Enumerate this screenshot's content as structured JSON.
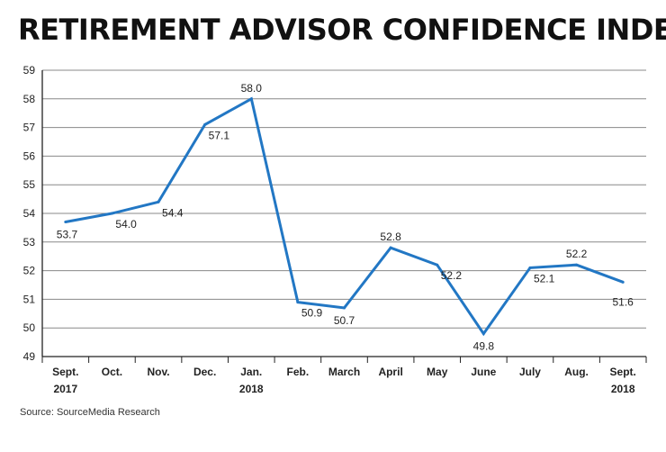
{
  "chart_data": {
    "type": "line",
    "title": "RETIREMENT ADVISOR CONFIDENCE INDEX",
    "source": "Source: SourceMedia Research",
    "categories": [
      [
        "Sept.",
        "2017"
      ],
      [
        "Oct."
      ],
      [
        "Nov."
      ],
      [
        "Dec."
      ],
      [
        "Jan.",
        "2018"
      ],
      [
        "Feb."
      ],
      [
        "March"
      ],
      [
        "April"
      ],
      [
        "May"
      ],
      [
        "June"
      ],
      [
        "July"
      ],
      [
        "Aug."
      ],
      [
        "Sept.",
        "2018"
      ]
    ],
    "series": [
      {
        "name": "Retirement Advisor Confidence Index",
        "values": [
          53.7,
          54.0,
          54.4,
          57.1,
          58.0,
          50.9,
          50.7,
          52.8,
          52.2,
          49.8,
          52.1,
          52.2,
          51.6
        ],
        "labels": [
          "53.7",
          "54.0",
          "54.4",
          "57.1",
          "58.0",
          "50.9",
          "50.7",
          "52.8",
          "52.2",
          "49.8",
          "52.1",
          "52.2",
          "51.6"
        ],
        "color": "#2277c4"
      }
    ],
    "ylim": [
      49,
      59
    ],
    "yticks": [
      49,
      50,
      51,
      52,
      53,
      54,
      55,
      56,
      57,
      58,
      59
    ],
    "grid": true,
    "xlabel": "",
    "ylabel": ""
  }
}
